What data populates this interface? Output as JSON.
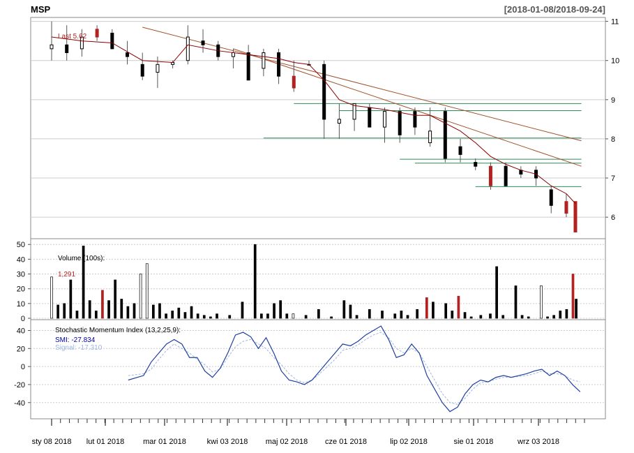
{
  "chart_data": [
    {
      "type": "candlestick",
      "title": "MSP",
      "date_range": "[2018-01-08/2018-09-24]",
      "last_label": "Last 5.62",
      "y_ticks": [
        "11",
        "10",
        "9",
        "8",
        "7",
        "6"
      ],
      "ylim": [
        5.45,
        11.1
      ],
      "grid": true,
      "colors": {
        "up": "#ffffff",
        "down": "#000000",
        "down_highlight": "#b22222",
        "ma_line": "#8b0000",
        "trend_line": "#a0522d",
        "support_line": "#2e8b57"
      },
      "candles_approx": [
        [
          0,
          10.3,
          11.0,
          10.0,
          10.4
        ],
        [
          5,
          10.4,
          10.9,
          10.0,
          10.2
        ],
        [
          10,
          10.3,
          10.8,
          10.1,
          10.6
        ],
        [
          15,
          10.8,
          10.9,
          10.5,
          10.6
        ],
        [
          20,
          10.7,
          10.8,
          10.4,
          10.3
        ],
        [
          25,
          10.2,
          10.5,
          9.9,
          10.1
        ],
        [
          30,
          9.9,
          10.2,
          9.5,
          9.6
        ],
        [
          35,
          9.7,
          10.1,
          9.3,
          9.9
        ],
        [
          40,
          9.9,
          10.0,
          9.8,
          9.95
        ],
        [
          45,
          10.0,
          10.9,
          9.9,
          10.6
        ],
        [
          50,
          10.5,
          10.8,
          10.2,
          10.4
        ],
        [
          55,
          10.4,
          10.5,
          10.0,
          10.1
        ],
        [
          60,
          10.1,
          10.3,
          9.8,
          10.2
        ],
        [
          65,
          10.2,
          10.4,
          9.5,
          9.5
        ],
        [
          70,
          9.8,
          10.3,
          9.6,
          10.2
        ],
        [
          75,
          10.2,
          10.3,
          9.4,
          9.6
        ],
        [
          80,
          9.6,
          10.0,
          9.2,
          9.3
        ],
        [
          85,
          9.9,
          10.0,
          9.9,
          9.9
        ],
        [
          90,
          9.9,
          10.0,
          8.0,
          8.5
        ],
        [
          95,
          8.4,
          8.9,
          8.0,
          8.5
        ],
        [
          100,
          8.5,
          8.9,
          8.2,
          8.9
        ],
        [
          105,
          8.8,
          8.9,
          8.3,
          8.3
        ],
        [
          110,
          8.3,
          8.8,
          7.9,
          8.7
        ],
        [
          115,
          8.7,
          8.8,
          7.9,
          8.1
        ],
        [
          120,
          8.7,
          8.8,
          8.1,
          8.3
        ],
        [
          125,
          7.9,
          8.8,
          7.8,
          8.2
        ],
        [
          130,
          8.7,
          8.8,
          7.4,
          7.5
        ],
        [
          135,
          7.8,
          8.0,
          7.4,
          7.6
        ],
        [
          140,
          7.4,
          7.5,
          7.2,
          7.3
        ],
        [
          145,
          7.3,
          7.4,
          6.7,
          6.8
        ],
        [
          150,
          7.3,
          7.4,
          6.8,
          6.8
        ],
        [
          155,
          7.2,
          7.3,
          7.0,
          7.1
        ],
        [
          160,
          7.2,
          7.3,
          6.8,
          7.0
        ],
        [
          165,
          6.7,
          6.8,
          6.1,
          6.3
        ],
        [
          170,
          6.4,
          6.6,
          6.0,
          6.1
        ],
        [
          173,
          6.4,
          6.4,
          5.8,
          5.62
        ]
      ],
      "moving_average_approx": [
        [
          0,
          10.6
        ],
        [
          10,
          10.5
        ],
        [
          20,
          10.45
        ],
        [
          30,
          10.0
        ],
        [
          40,
          9.95
        ],
        [
          45,
          10.4
        ],
        [
          55,
          10.25
        ],
        [
          65,
          10.15
        ],
        [
          75,
          10.05
        ],
        [
          80,
          9.95
        ],
        [
          85,
          9.9
        ],
        [
          90,
          9.5
        ],
        [
          95,
          9.0
        ],
        [
          100,
          8.85
        ],
        [
          110,
          8.75
        ],
        [
          120,
          8.6
        ],
        [
          125,
          8.6
        ],
        [
          130,
          8.4
        ],
        [
          135,
          8.2
        ],
        [
          140,
          7.9
        ],
        [
          145,
          7.55
        ],
        [
          150,
          7.35
        ],
        [
          155,
          7.2
        ],
        [
          160,
          7.1
        ],
        [
          165,
          6.8
        ],
        [
          170,
          6.6
        ],
        [
          173,
          6.35
        ]
      ],
      "trend_lines": [
        {
          "from": [
            30,
            10.85
          ],
          "to": [
            175,
            7.95
          ]
        },
        {
          "from": [
            60,
            10.3
          ],
          "to": [
            175,
            7.3
          ]
        }
      ],
      "support_lines": [
        {
          "from": [
            80,
            8.9
          ],
          "to": [
            175,
            8.9
          ]
        },
        {
          "from": [
            95,
            8.72
          ],
          "to": [
            175,
            8.72
          ]
        },
        {
          "from": [
            70,
            8.02
          ],
          "to": [
            175,
            8.02
          ]
        },
        {
          "from": [
            115,
            7.48
          ],
          "to": [
            175,
            7.48
          ]
        },
        {
          "from": [
            120,
            7.38
          ],
          "to": [
            175,
            7.38
          ]
        },
        {
          "from": [
            140,
            6.78
          ],
          "to": [
            175,
            6.78
          ]
        }
      ]
    },
    {
      "type": "bar",
      "label": "Volume (100s):",
      "last_value": "1,291",
      "y_ticks": [
        "50",
        "40",
        "30",
        "20",
        "10",
        "0"
      ],
      "ylim": [
        0,
        52
      ],
      "grid": true,
      "volumes_approx": [
        [
          0,
          28
        ],
        [
          2,
          9
        ],
        [
          4,
          10
        ],
        [
          6,
          26
        ],
        [
          8,
          5
        ],
        [
          10,
          49
        ],
        [
          12,
          12
        ],
        [
          14,
          5
        ],
        [
          16,
          19
        ],
        [
          18,
          12
        ],
        [
          20,
          26
        ],
        [
          22,
          13
        ],
        [
          24,
          8
        ],
        [
          26,
          10
        ],
        [
          28,
          30
        ],
        [
          30,
          37
        ],
        [
          32,
          9
        ],
        [
          34,
          10
        ],
        [
          36,
          3
        ],
        [
          38,
          5
        ],
        [
          40,
          7
        ],
        [
          42,
          4
        ],
        [
          44,
          8
        ],
        [
          46,
          3
        ],
        [
          48,
          2
        ],
        [
          50,
          1
        ],
        [
          52,
          3
        ],
        [
          56,
          2
        ],
        [
          60,
          11
        ],
        [
          64,
          50
        ],
        [
          66,
          3
        ],
        [
          68,
          3
        ],
        [
          70,
          10
        ],
        [
          72,
          12
        ],
        [
          74,
          3
        ],
        [
          76,
          3
        ],
        [
          80,
          2
        ],
        [
          84,
          6
        ],
        [
          88,
          1
        ],
        [
          92,
          12
        ],
        [
          94,
          9
        ],
        [
          96,
          2
        ],
        [
          100,
          6
        ],
        [
          104,
          5
        ],
        [
          108,
          3
        ],
        [
          110,
          5
        ],
        [
          112,
          2
        ],
        [
          115,
          6
        ],
        [
          118,
          14
        ],
        [
          120,
          11
        ],
        [
          124,
          10
        ],
        [
          126,
          5
        ],
        [
          128,
          15
        ],
        [
          130,
          4
        ],
        [
          132,
          1
        ],
        [
          135,
          2
        ],
        [
          138,
          3
        ],
        [
          140,
          35
        ],
        [
          142,
          2
        ],
        [
          146,
          22
        ],
        [
          148,
          2
        ],
        [
          150,
          1
        ],
        [
          154,
          22
        ],
        [
          156,
          1
        ],
        [
          158,
          2
        ],
        [
          160,
          5
        ],
        [
          162,
          6
        ],
        [
          164,
          30
        ],
        [
          165,
          13
        ]
      ]
    },
    {
      "type": "line",
      "label": "Stochastic Momentum Index (13,2,25,9):",
      "smi_label": "SMI: -27.834",
      "signal_label": "Signal: -17.310",
      "y_ticks": [
        "40",
        "20",
        "0",
        "-20",
        "-40"
      ],
      "ylim": [
        -58,
        52
      ],
      "grid": true,
      "smi_approx": [
        [
          20,
          -15
        ],
        [
          24,
          -10
        ],
        [
          26,
          5
        ],
        [
          28,
          15
        ],
        [
          30,
          25
        ],
        [
          32,
          30
        ],
        [
          34,
          25
        ],
        [
          36,
          10
        ],
        [
          38,
          10
        ],
        [
          40,
          -5
        ],
        [
          42,
          -12
        ],
        [
          44,
          -2
        ],
        [
          46,
          15
        ],
        [
          48,
          35
        ],
        [
          50,
          38
        ],
        [
          52,
          33
        ],
        [
          54,
          20
        ],
        [
          56,
          32
        ],
        [
          58,
          15
        ],
        [
          60,
          -5
        ],
        [
          62,
          -15
        ],
        [
          64,
          -17
        ],
        [
          66,
          -20
        ],
        [
          68,
          -15
        ],
        [
          70,
          -5
        ],
        [
          72,
          5
        ],
        [
          74,
          15
        ],
        [
          76,
          25
        ],
        [
          78,
          23
        ],
        [
          80,
          28
        ],
        [
          82,
          35
        ],
        [
          84,
          40
        ],
        [
          86,
          45
        ],
        [
          88,
          30
        ],
        [
          90,
          10
        ],
        [
          92,
          13
        ],
        [
          94,
          25
        ],
        [
          96,
          15
        ],
        [
          98,
          -10
        ],
        [
          100,
          -25
        ],
        [
          102,
          -40
        ],
        [
          104,
          -50
        ],
        [
          106,
          -45
        ],
        [
          108,
          -30
        ],
        [
          110,
          -20
        ],
        [
          112,
          -15
        ],
        [
          114,
          -17
        ],
        [
          116,
          -12
        ],
        [
          118,
          -10
        ],
        [
          120,
          -12
        ],
        [
          122,
          -10
        ],
        [
          124,
          -8
        ],
        [
          126,
          -5
        ],
        [
          128,
          -3
        ],
        [
          130,
          -10
        ],
        [
          132,
          -5
        ],
        [
          134,
          -10
        ],
        [
          136,
          -20
        ],
        [
          138,
          -28
        ]
      ],
      "signal_approx": [
        [
          20,
          -10
        ],
        [
          24,
          -8
        ],
        [
          26,
          -3
        ],
        [
          28,
          8
        ],
        [
          30,
          18
        ],
        [
          32,
          25
        ],
        [
          34,
          20
        ],
        [
          36,
          15
        ],
        [
          38,
          8
        ],
        [
          40,
          2
        ],
        [
          42,
          -6
        ],
        [
          44,
          -3
        ],
        [
          46,
          10
        ],
        [
          48,
          22
        ],
        [
          50,
          28
        ],
        [
          52,
          30
        ],
        [
          54,
          25
        ],
        [
          56,
          20
        ],
        [
          58,
          10
        ],
        [
          60,
          2
        ],
        [
          62,
          -8
        ],
        [
          64,
          -15
        ],
        [
          66,
          -18
        ],
        [
          68,
          -15
        ],
        [
          70,
          -8
        ],
        [
          72,
          0
        ],
        [
          74,
          8
        ],
        [
          76,
          18
        ],
        [
          78,
          20
        ],
        [
          80,
          24
        ],
        [
          82,
          30
        ],
        [
          84,
          35
        ],
        [
          86,
          38
        ],
        [
          88,
          32
        ],
        [
          90,
          20
        ],
        [
          92,
          15
        ],
        [
          94,
          20
        ],
        [
          96,
          15
        ],
        [
          98,
          0
        ],
        [
          100,
          -15
        ],
        [
          102,
          -30
        ],
        [
          104,
          -40
        ],
        [
          106,
          -42
        ],
        [
          108,
          -35
        ],
        [
          110,
          -25
        ],
        [
          112,
          -18
        ],
        [
          114,
          -17
        ],
        [
          116,
          -14
        ],
        [
          118,
          -12
        ],
        [
          120,
          -12
        ],
        [
          122,
          -11
        ],
        [
          124,
          -10
        ],
        [
          126,
          -8
        ],
        [
          128,
          -5
        ],
        [
          130,
          -8
        ],
        [
          132,
          -8
        ],
        [
          134,
          -10
        ],
        [
          136,
          -15
        ],
        [
          138,
          -17
        ]
      ]
    }
  ],
  "x_axis": {
    "ticks": [
      "sty 08 2018",
      "lut 01 2018",
      "mar 01 2018",
      "kwi 03 2018",
      "maj 02 2018",
      "cze 01 2018",
      "lip 02 2018",
      "sie 01 2018",
      "wrz 03 2018"
    ],
    "tick_minor_count": 60
  }
}
